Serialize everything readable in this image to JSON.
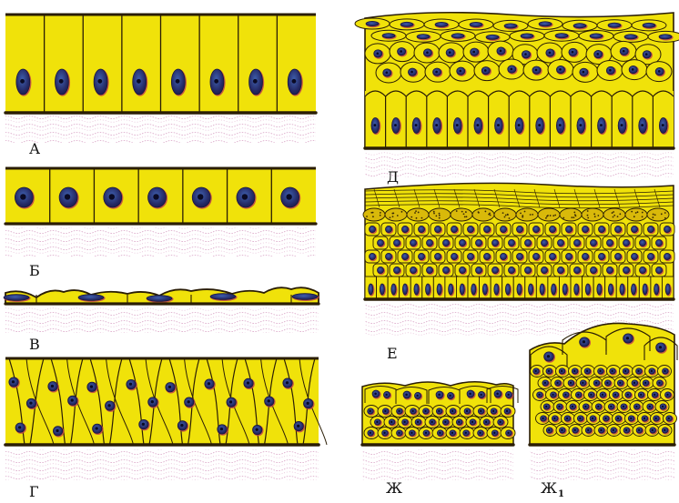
{
  "labels": {
    "a": "А",
    "b": "Б",
    "v": "В",
    "g": "Г",
    "d": "Д",
    "e": "Е",
    "zh": "Ж",
    "zh1_main": "Ж",
    "zh1_sub": "1"
  },
  "colors": {
    "cytoplasm": "#f0e20a",
    "outline": "#2a1d05",
    "nucleus": "#29306e",
    "nucleus_edge": "#c0424a",
    "nucleolus": "#0a0a24",
    "stroma": "#d9a2c8"
  }
}
